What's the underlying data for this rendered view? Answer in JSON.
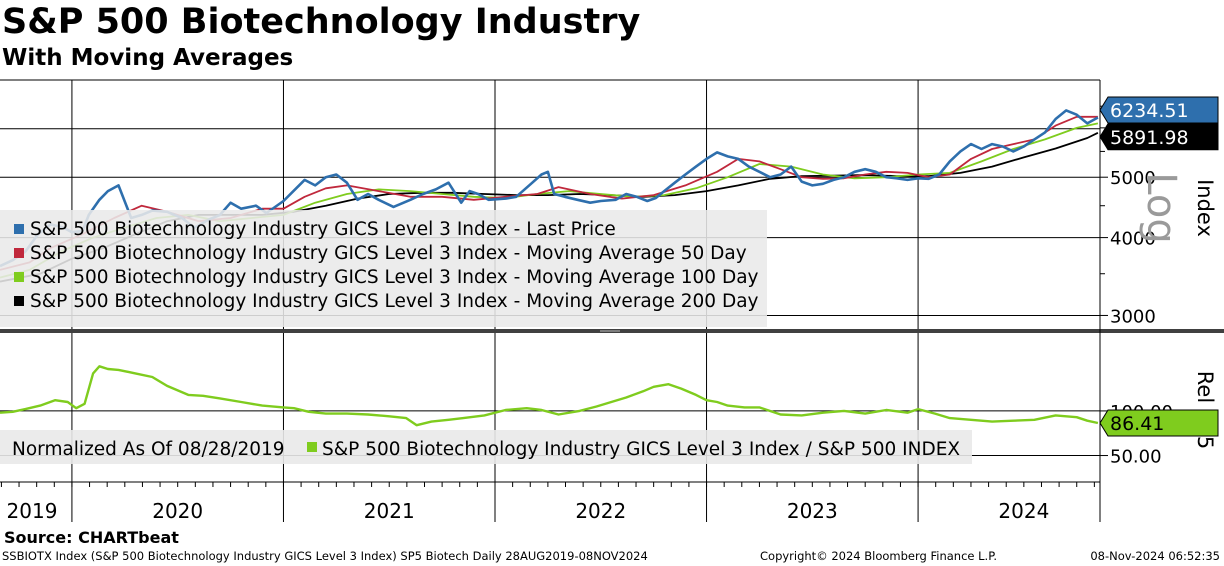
{
  "chart_data": {
    "type": "line",
    "title": "S&P 500 Biotechnology Industry",
    "subtitle": "With Moving Averages",
    "source": "Source: CHARTbeat",
    "footer": {
      "left": "SSBIOTX Index (S&P 500 Biotechnology Industry GICS Level 3 Index) SP5 Biotech  Daily 28AUG2019-08NOV2024",
      "center": "Copyright© 2024 Bloomberg Finance L.P.",
      "right": "08-Nov-2024 06:52:35"
    },
    "x_axis": {
      "year_labels": [
        "2019",
        "2020",
        "2021",
        "2022",
        "2023",
        "2024"
      ],
      "range": [
        2019.66,
        2024.86
      ]
    },
    "upper_panel": {
      "ylabel": "Index",
      "scale_label": "Log",
      "scale": "log",
      "y_ticks": [
        3000,
        4000,
        5000
      ],
      "ylim": [
        2950,
        6700
      ],
      "last_price_label": "6234.51",
      "ma200_label": "5891.98",
      "legend": [
        "S&P 500 Biotechnology Industry GICS Level 3 Index - Last Price",
        "S&P 500 Biotechnology Industry GICS Level 3 Index - Moving Average 50 Day",
        "S&P 500 Biotechnology Industry GICS Level 3 Index - Moving Average 100 Day",
        "S&P 500 Biotechnology Industry GICS Level 3 Index - Moving Average 200 Day"
      ],
      "series": [
        {
          "name": "Last Price",
          "color": "#2e6fad",
          "x": [
            2019.66,
            2019.72,
            2019.78,
            2019.84,
            2019.9,
            2019.96,
            2020.0,
            2020.05,
            2020.08,
            2020.13,
            2020.17,
            2020.22,
            2020.28,
            2020.33,
            2020.38,
            2020.45,
            2020.52,
            2020.58,
            2020.65,
            2020.7,
            2020.75,
            2020.8,
            2020.87,
            2020.92,
            2021.0,
            2021.06,
            2021.1,
            2021.15,
            2021.2,
            2021.25,
            2021.3,
            2021.35,
            2021.4,
            2021.45,
            2021.52,
            2021.6,
            2021.66,
            2021.72,
            2021.78,
            2021.84,
            2021.88,
            2021.92,
            2021.97,
            2022.05,
            2022.1,
            2022.17,
            2022.22,
            2022.25,
            2022.28,
            2022.33,
            2022.39,
            2022.45,
            2022.5,
            2022.57,
            2022.62,
            2022.67,
            2022.72,
            2022.76,
            2022.8,
            2022.85,
            2022.9,
            2022.95,
            2023.0,
            2023.05,
            2023.1,
            2023.15,
            2023.2,
            2023.25,
            2023.3,
            2023.35,
            2023.4,
            2023.45,
            2023.5,
            2023.55,
            2023.6,
            2023.65,
            2023.7,
            2023.75,
            2023.8,
            2023.85,
            2023.9,
            2023.95,
            2024.0,
            2024.05,
            2024.1,
            2024.15,
            2024.2,
            2024.25,
            2024.3,
            2024.35,
            2024.4,
            2024.45,
            2024.5,
            2024.55,
            2024.6,
            2024.65,
            2024.7,
            2024.75,
            2024.8,
            2024.85
          ],
          "values": [
            3600,
            3680,
            3800,
            4050,
            4200,
            4150,
            4080,
            4100,
            4350,
            4600,
            4750,
            4850,
            4300,
            4350,
            4420,
            4400,
            4300,
            4150,
            4280,
            4350,
            4550,
            4450,
            4500,
            4380,
            4580,
            4800,
            4950,
            4850,
            5000,
            5050,
            4900,
            4600,
            4700,
            4600,
            4480,
            4600,
            4700,
            4780,
            4900,
            4550,
            4750,
            4700,
            4600,
            4620,
            4650,
            4880,
            5050,
            5100,
            4700,
            4650,
            4600,
            4550,
            4580,
            4600,
            4700,
            4650,
            4580,
            4630,
            4750,
            4900,
            5050,
            5200,
            5350,
            5480,
            5400,
            5350,
            5200,
            5100,
            5000,
            5050,
            5200,
            4920,
            4850,
            4880,
            4950,
            5000,
            5100,
            5150,
            5100,
            5000,
            4980,
            4950,
            4980,
            4970,
            5050,
            5300,
            5500,
            5650,
            5550,
            5650,
            5600,
            5500,
            5600,
            5750,
            5900,
            6200,
            6400,
            6300,
            6100,
            6234.51
          ]
        },
        {
          "name": "Moving Average 50 Day",
          "color": "#c0283c",
          "x": [
            2019.66,
            2019.8,
            2019.9,
            2020.05,
            2020.2,
            2020.33,
            2020.45,
            2020.6,
            2020.75,
            2020.9,
            2021.0,
            2021.1,
            2021.2,
            2021.3,
            2021.45,
            2021.6,
            2021.75,
            2021.9,
            2022.05,
            2022.2,
            2022.3,
            2022.45,
            2022.6,
            2022.75,
            2022.9,
            2023.05,
            2023.15,
            2023.25,
            2023.35,
            2023.45,
            2023.55,
            2023.65,
            2023.75,
            2023.85,
            2023.95,
            2024.05,
            2024.15,
            2024.25,
            2024.35,
            2024.45,
            2024.55,
            2024.65,
            2024.75,
            2024.85
          ],
          "values": [
            3550,
            3650,
            3850,
            4050,
            4300,
            4500,
            4400,
            4250,
            4300,
            4450,
            4450,
            4650,
            4800,
            4850,
            4750,
            4650,
            4650,
            4600,
            4650,
            4700,
            4820,
            4700,
            4620,
            4680,
            4850,
            5100,
            5350,
            5300,
            5150,
            5000,
            4970,
            4980,
            5050,
            5100,
            5080,
            5000,
            5050,
            5350,
            5550,
            5650,
            5750,
            6050,
            6250,
            6250
          ]
        },
        {
          "name": "Moving Average 100 Day",
          "color": "#7fcc1e",
          "x": [
            2019.66,
            2019.8,
            2019.95,
            2020.1,
            2020.25,
            2020.4,
            2020.55,
            2020.7,
            2020.85,
            2021.0,
            2021.15,
            2021.3,
            2021.45,
            2021.6,
            2021.75,
            2021.9,
            2022.05,
            2022.2,
            2022.35,
            2022.5,
            2022.65,
            2022.8,
            2022.95,
            2023.1,
            2023.25,
            2023.4,
            2023.55,
            2023.7,
            2023.85,
            2024.0,
            2024.15,
            2024.3,
            2024.45,
            2024.6,
            2024.75,
            2024.85
          ],
          "values": [
            3450,
            3550,
            3800,
            4000,
            4150,
            4300,
            4350,
            4250,
            4300,
            4350,
            4550,
            4700,
            4780,
            4750,
            4700,
            4650,
            4630,
            4700,
            4750,
            4700,
            4650,
            4680,
            4800,
            5000,
            5250,
            5200,
            5050,
            4980,
            5000,
            5050,
            5080,
            5300,
            5550,
            5750,
            6000,
            6100
          ]
        },
        {
          "name": "Moving Average 200 Day",
          "color": "#000000",
          "x": [
            2019.66,
            2019.85,
            2020.0,
            2020.15,
            2020.3,
            2020.45,
            2020.6,
            2020.75,
            2020.9,
            2021.05,
            2021.2,
            2021.35,
            2021.5,
            2021.65,
            2021.8,
            2021.95,
            2022.1,
            2022.25,
            2022.4,
            2022.55,
            2022.7,
            2022.85,
            2023.0,
            2023.15,
            2023.3,
            2023.45,
            2023.6,
            2023.75,
            2023.9,
            2024.05,
            2024.2,
            2024.35,
            2024.5,
            2024.65,
            2024.8,
            2024.85
          ],
          "values": [
            3400,
            3500,
            3700,
            3850,
            4050,
            4250,
            4350,
            4350,
            4350,
            4400,
            4500,
            4620,
            4700,
            4720,
            4720,
            4700,
            4680,
            4680,
            4700,
            4680,
            4650,
            4680,
            4750,
            4850,
            4970,
            5020,
            5030,
            5040,
            5020,
            5020,
            5080,
            5200,
            5380,
            5560,
            5780,
            5891.98
          ]
        }
      ]
    },
    "lower_panel": {
      "ylabel": "Rel SP5",
      "y_ticks": [
        100,
        50
      ],
      "y_tick_labels": [
        "100.00",
        "50.00"
      ],
      "ylim": [
        45,
        175
      ],
      "last_value_label": "86.41",
      "legend_prefix": "Normalized As Of 08/28/2019",
      "legend": [
        "S&P 500 Biotechnology Industry GICS Level 3 Index / S&P 500 INDEX"
      ],
      "series": [
        {
          "name": "Relative to S&P 500",
          "color": "#7fcc1e",
          "x": [
            2019.66,
            2019.72,
            2019.78,
            2019.85,
            2019.92,
            2019.98,
            2020.02,
            2020.06,
            2020.1,
            2020.13,
            2020.17,
            2020.22,
            2020.3,
            2020.38,
            2020.45,
            2020.55,
            2020.62,
            2020.7,
            2020.8,
            2020.9,
            2021.0,
            2021.05,
            2021.12,
            2021.2,
            2021.3,
            2021.4,
            2021.5,
            2021.58,
            2021.63,
            2021.7,
            2021.78,
            2021.85,
            2021.95,
            2022.05,
            2022.15,
            2022.22,
            2022.3,
            2022.4,
            2022.48,
            2022.55,
            2022.62,
            2022.7,
            2022.75,
            2022.82,
            2022.88,
            2022.95,
            2023.0,
            2023.05,
            2023.1,
            2023.18,
            2023.25,
            2023.35,
            2023.45,
            2023.55,
            2023.65,
            2023.75,
            2023.85,
            2023.95,
            2024.0,
            2024.08,
            2024.15,
            2024.25,
            2024.35,
            2024.45,
            2024.55,
            2024.65,
            2024.75,
            2024.8,
            2024.85
          ],
          "values": [
            98,
            99,
            102,
            106,
            112,
            110,
            103,
            108,
            142,
            150,
            147,
            146,
            142,
            138,
            128,
            118,
            117,
            114,
            110,
            106,
            104,
            103,
            99,
            97,
            97,
            96,
            94,
            92,
            84,
            88,
            90,
            92,
            95,
            101,
            103,
            101,
            96,
            100,
            105,
            110,
            115,
            122,
            127,
            130,
            125,
            118,
            112,
            110,
            106,
            104,
            104,
            96,
            95,
            98,
            100,
            97,
            101,
            98,
            102,
            97,
            92,
            90,
            88,
            89,
            90,
            95,
            93,
            89,
            86.41
          ]
        }
      ]
    }
  }
}
